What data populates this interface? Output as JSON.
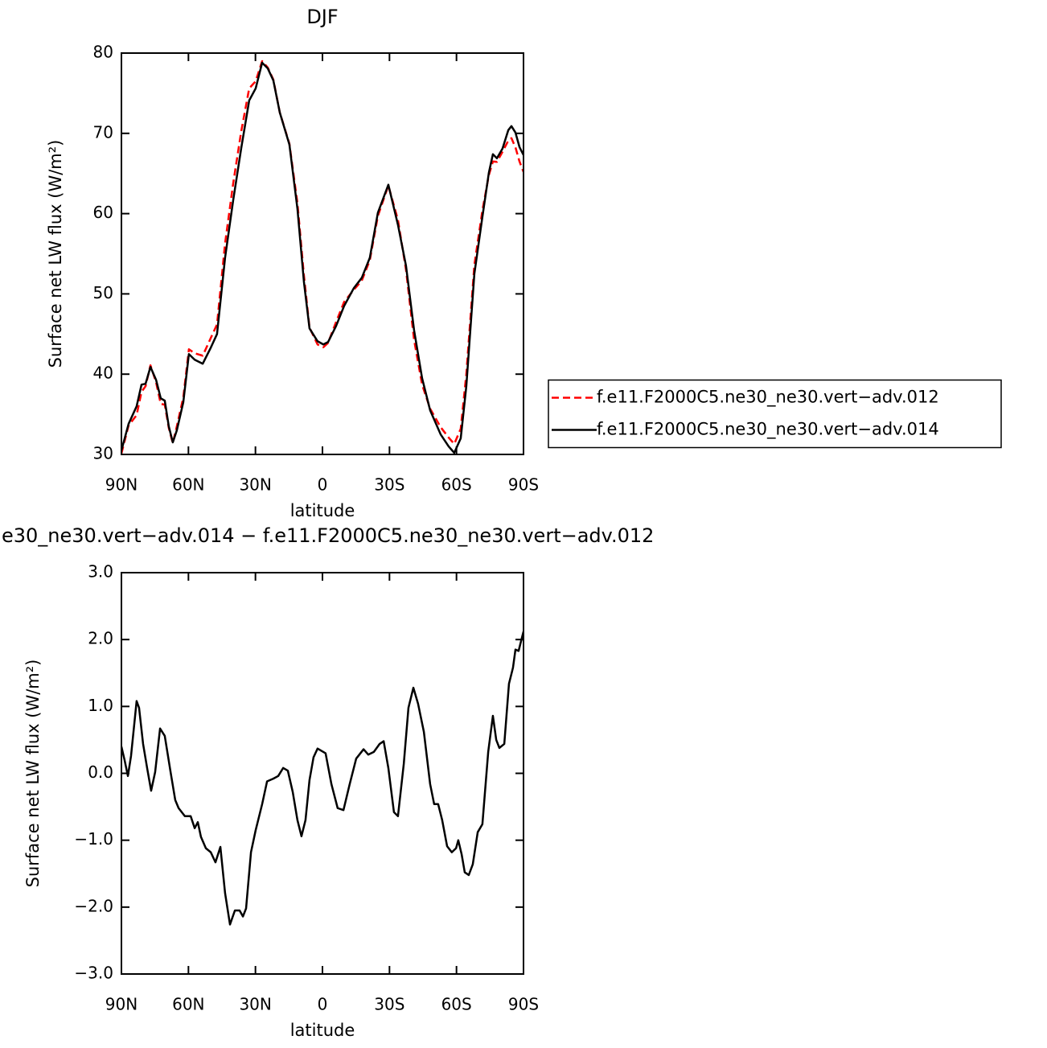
{
  "chart_data": [
    {
      "type": "line",
      "title": "DJF",
      "xlabel": "latitude",
      "ylabel": "Surface net LW flux (W/m²)",
      "xlim": [
        90,
        -90
      ],
      "xticks": [
        {
          "value": 90,
          "label": "90N"
        },
        {
          "value": 60,
          "label": "60N"
        },
        {
          "value": 30,
          "label": "30N"
        },
        0,
        {
          "value": -30,
          "label": "30S"
        },
        {
          "value": -60,
          "label": "60S"
        },
        {
          "value": -90,
          "label": "90S"
        }
      ],
      "ylim": [
        30,
        80
      ],
      "yticks": [
        30,
        40,
        50,
        60,
        70,
        80
      ],
      "legend": "right",
      "series": [
        {
          "name": "f.e11.F2000C5.ne30_ne30.vert−adv.012",
          "color": "#ff0000",
          "line_style": "dashed",
          "x": [
            90,
            86.8,
            83.2,
            81,
            79.2,
            77,
            74.5,
            72.4,
            70.6,
            68.8,
            67,
            65.2,
            62.3,
            59.8,
            57.2,
            53.6,
            50,
            47.2,
            43.6,
            40,
            36.4,
            32.8,
            29.9,
            27,
            24.5,
            22,
            19.1,
            14.8,
            11.2,
            8.3,
            5.8,
            2.2,
            -0.4,
            -2.5,
            -6.1,
            -9.7,
            -14,
            -17.6,
            -21.2,
            -24.8,
            -29.5,
            -33.8,
            -37.4,
            -41,
            -44.6,
            -48.2,
            -52.9,
            -56.5,
            -59,
            -61.9,
            -64.4,
            -68,
            -71.6,
            -74.5,
            -76.3,
            -78.1,
            -80.6,
            -83.2,
            -84.6,
            -86.4,
            -88.2,
            -90
          ],
          "values": [
            30.1,
            33.6,
            34.9,
            37.8,
            38.5,
            41.1,
            39.0,
            36.3,
            36.2,
            33.3,
            31.4,
            33.5,
            37.1,
            43.1,
            42.6,
            42.3,
            44.5,
            46.2,
            56.3,
            63.7,
            70.2,
            75.6,
            76.5,
            79.0,
            78.2,
            76.7,
            72.6,
            68.7,
            61.3,
            52.3,
            45.8,
            43.7,
            43.35,
            43.9,
            46.5,
            49,
            50.5,
            51.65,
            54.2,
            59.7,
            63.5,
            59.2,
            53,
            44.3,
            38.7,
            35.7,
            33.4,
            32.1,
            31.3,
            33.2,
            40,
            53.6,
            60.4,
            64.8,
            66.5,
            66.45,
            67.7,
            69.1,
            69.4,
            68.25,
            66.5,
            65.2
          ]
        },
        {
          "name": "f.e11.F2000C5.ne30_ne30.vert−adv.014",
          "color": "#000000",
          "line_style": "solid",
          "x": [
            90,
            86.8,
            83.2,
            81,
            79.2,
            77,
            74.5,
            72.4,
            70.6,
            68.8,
            67,
            65.2,
            62.3,
            59.8,
            57.2,
            53.6,
            50,
            47.2,
            43.6,
            40,
            36.4,
            32.8,
            29.9,
            27,
            24.5,
            22,
            19.1,
            14.8,
            11.2,
            8.3,
            5.8,
            2.2,
            -0.4,
            -2.5,
            -6.1,
            -9.7,
            -14,
            -17.6,
            -21.2,
            -24.8,
            -29.5,
            -33.8,
            -37.4,
            -41,
            -44.6,
            -48.2,
            -52.9,
            -56.5,
            -59,
            -61.9,
            -64.4,
            -68,
            -71.6,
            -74.5,
            -76.3,
            -78.1,
            -80.6,
            -83.2,
            -84.6,
            -86.4,
            -88.2,
            -90
          ],
          "values": [
            30.5,
            33.8,
            36,
            38.7,
            38.8,
            40.9,
            39.3,
            37,
            36.7,
            33.5,
            31.5,
            33,
            36.5,
            42.5,
            41.8,
            41.3,
            43.3,
            45,
            54.5,
            61.6,
            68.1,
            74.1,
            75.6,
            78.8,
            78.1,
            76.6,
            72.6,
            68.6,
            60.6,
            51.5,
            45.7,
            44.1,
            43.7,
            44,
            46,
            48.5,
            50.7,
            52,
            54.5,
            60.1,
            63.6,
            58.6,
            53.5,
            45.5,
            39.5,
            35.5,
            32.5,
            31,
            30.2,
            32,
            38.5,
            52.5,
            59.6,
            65.1,
            67.4,
            66.9,
            68.1,
            70.4,
            70.9,
            70.1,
            68.3,
            67.3
          ]
        }
      ]
    },
    {
      "type": "line",
      "title": "e30_ne30.vert−adv.014 − f.e11.F2000C5.ne30_ne30.vert−adv.012",
      "xlabel": "latitude",
      "ylabel": "Surface net LW flux (W/m²)",
      "xlim": [
        90,
        -90
      ],
      "xticks": [
        {
          "value": 90,
          "label": "90N"
        },
        {
          "value": 60,
          "label": "60N"
        },
        {
          "value": 30,
          "label": "30N"
        },
        0,
        {
          "value": -30,
          "label": "30S"
        },
        {
          "value": -60,
          "label": "60S"
        },
        {
          "value": -90,
          "label": "90S"
        }
      ],
      "ylim": [
        -3,
        3
      ],
      "yticks": [
        {
          "value": -3,
          "label": "−3.0"
        },
        {
          "value": -2,
          "label": "−2.0"
        },
        {
          "value": -1,
          "label": "−1.0"
        },
        {
          "value": 0,
          "label": "0.0"
        },
        {
          "value": 1,
          "label": "1.0"
        },
        {
          "value": 2,
          "label": "2.0"
        },
        {
          "value": 3,
          "label": "3.0"
        }
      ],
      "series": [
        {
          "color": "#000000",
          "line_style": "solid",
          "x": [
            90,
            88.6,
            87.1,
            85.7,
            83.2,
            82.1,
            80.3,
            78.5,
            76.7,
            74.9,
            72.7,
            70.6,
            68,
            65.9,
            64.4,
            61.6,
            59,
            57.2,
            55.8,
            54.4,
            52.2,
            50,
            47.9,
            45.7,
            43.6,
            41.4,
            39.2,
            37.1,
            35.6,
            34.2,
            32,
            29.9,
            27,
            24.8,
            22,
            19.8,
            17.6,
            15.5,
            13.3,
            11.2,
            9.4,
            7.6,
            5.8,
            4,
            2.2,
            -1.4,
            -4,
            -6.8,
            -9.4,
            -12.2,
            -15.1,
            -18.4,
            -20.5,
            -23,
            -25.6,
            -27.4,
            -29.5,
            -32,
            -33.8,
            -36.4,
            -38.5,
            -40.7,
            -42.8,
            -45.4,
            -48.2,
            -50,
            -51.8,
            -53.6,
            -55.8,
            -57.9,
            -59.8,
            -60.8,
            -62.3,
            -63.7,
            -65.5,
            -67.3,
            -69.5,
            -71.6,
            -74.2,
            -76.3,
            -77.8,
            -79.2,
            -81.4,
            -83.5,
            -85.3,
            -86.4,
            -87.8,
            -90
          ],
          "values": [
            0.4,
            0.2,
            -0.04,
            0.26,
            1.08,
            0.98,
            0.44,
            0.08,
            -0.26,
            0.02,
            0.67,
            0.56,
            0.02,
            -0.4,
            -0.52,
            -0.64,
            -0.64,
            -0.82,
            -0.73,
            -0.95,
            -1.12,
            -1.18,
            -1.33,
            -1.1,
            -1.79,
            -2.26,
            -2.05,
            -2.05,
            -2.14,
            -2.02,
            -1.18,
            -0.85,
            -0.46,
            -0.12,
            -0.08,
            -0.04,
            0.08,
            0.04,
            -0.28,
            -0.7,
            -0.94,
            -0.7,
            -0.1,
            0.24,
            0.37,
            0.3,
            -0.16,
            -0.52,
            -0.55,
            -0.16,
            0.22,
            0.36,
            0.28,
            0.32,
            0.44,
            0.48,
            0.08,
            -0.58,
            -0.64,
            0.14,
            0.98,
            1.28,
            1.04,
            0.62,
            -0.16,
            -0.46,
            -0.46,
            -0.7,
            -1.09,
            -1.18,
            -1.12,
            -1,
            -1.21,
            -1.48,
            -1.52,
            -1.36,
            -0.88,
            -0.76,
            0.32,
            0.86,
            0.5,
            0.38,
            0.44,
            1.34,
            1.58,
            1.85,
            1.83,
            2.12
          ]
        }
      ]
    }
  ]
}
